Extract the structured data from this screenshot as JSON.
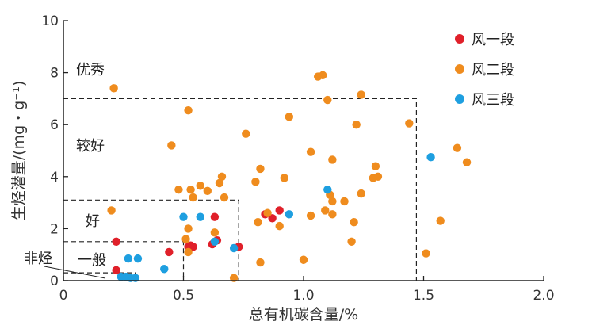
{
  "chart_data": {
    "type": "scatter",
    "xlabel": "总有机碳含量/%",
    "ylabel": "生烃潜量/(mg・g⁻¹)",
    "xlim": [
      0,
      2.0
    ],
    "ylim": [
      0,
      10
    ],
    "xticks": [
      "0",
      "0.5",
      "1.0",
      "1.5",
      "2.0"
    ],
    "yticks": [
      "0",
      "2",
      "4",
      "6",
      "8",
      "10"
    ],
    "grid": false,
    "legend_position": "top-right",
    "regions": {
      "excellent": "优秀",
      "good_plus": "较好",
      "good": "好",
      "fair": "一般",
      "non_source": "非烃"
    },
    "boundaries": [
      {
        "x": 1.47,
        "y": 7.0
      },
      {
        "x": 0.73,
        "y": 3.1
      },
      {
        "x": 0.5,
        "y": 1.5
      },
      {
        "x": 0.3,
        "y": 0.3
      }
    ],
    "series": [
      {
        "name": "风一段",
        "color": "#e0202a",
        "points": [
          [
            0.22,
            1.5
          ],
          [
            0.22,
            0.4
          ],
          [
            0.44,
            1.1
          ],
          [
            0.52,
            1.3
          ],
          [
            0.53,
            1.35
          ],
          [
            0.54,
            1.3
          ],
          [
            0.63,
            2.45
          ],
          [
            0.64,
            1.55
          ],
          [
            0.62,
            1.4
          ],
          [
            0.73,
            1.3
          ],
          [
            0.84,
            2.55
          ],
          [
            0.87,
            2.4
          ],
          [
            0.9,
            2.7
          ]
        ]
      },
      {
        "name": "风二段",
        "color": "#ef8c1e",
        "points": [
          [
            0.21,
            7.4
          ],
          [
            0.2,
            2.7
          ],
          [
            0.45,
            5.2
          ],
          [
            0.48,
            3.5
          ],
          [
            0.52,
            6.55
          ],
          [
            0.51,
            1.6
          ],
          [
            0.52,
            2.0
          ],
          [
            0.52,
            1.1
          ],
          [
            0.53,
            3.5
          ],
          [
            0.54,
            3.2
          ],
          [
            0.57,
            3.65
          ],
          [
            0.6,
            3.45
          ],
          [
            0.63,
            1.85
          ],
          [
            0.65,
            3.75
          ],
          [
            0.66,
            4.0
          ],
          [
            0.67,
            3.2
          ],
          [
            0.71,
            0.1
          ],
          [
            0.76,
            5.65
          ],
          [
            0.8,
            3.8
          ],
          [
            0.81,
            2.25
          ],
          [
            0.82,
            4.3
          ],
          [
            0.82,
            0.7
          ],
          [
            0.85,
            2.6
          ],
          [
            0.9,
            2.1
          ],
          [
            0.92,
            3.95
          ],
          [
            0.94,
            6.3
          ],
          [
            1.0,
            0.8
          ],
          [
            1.03,
            2.5
          ],
          [
            1.03,
            4.95
          ],
          [
            1.06,
            7.85
          ],
          [
            1.08,
            7.9
          ],
          [
            1.09,
            2.7
          ],
          [
            1.1,
            6.95
          ],
          [
            1.11,
            3.3
          ],
          [
            1.12,
            4.65
          ],
          [
            1.12,
            3.05
          ],
          [
            1.12,
            2.55
          ],
          [
            1.17,
            3.05
          ],
          [
            1.2,
            1.5
          ],
          [
            1.21,
            2.25
          ],
          [
            1.22,
            6.0
          ],
          [
            1.24,
            3.35
          ],
          [
            1.24,
            7.15
          ],
          [
            1.29,
            3.95
          ],
          [
            1.3,
            4.4
          ],
          [
            1.31,
            4.0
          ],
          [
            1.44,
            6.05
          ],
          [
            1.51,
            1.05
          ],
          [
            1.57,
            2.3
          ],
          [
            1.64,
            5.1
          ],
          [
            1.68,
            4.55
          ]
        ]
      },
      {
        "name": "风三段",
        "color": "#1e9fe0",
        "points": [
          [
            0.24,
            0.15
          ],
          [
            0.26,
            0.15
          ],
          [
            0.27,
            0.85
          ],
          [
            0.28,
            0.1
          ],
          [
            0.31,
            0.85
          ],
          [
            0.3,
            0.1
          ],
          [
            0.42,
            0.45
          ],
          [
            0.5,
            2.45
          ],
          [
            0.57,
            2.45
          ],
          [
            0.63,
            1.5
          ],
          [
            0.71,
            1.25
          ],
          [
            0.94,
            2.55
          ],
          [
            1.1,
            3.5
          ],
          [
            1.53,
            4.75
          ]
        ]
      }
    ]
  }
}
